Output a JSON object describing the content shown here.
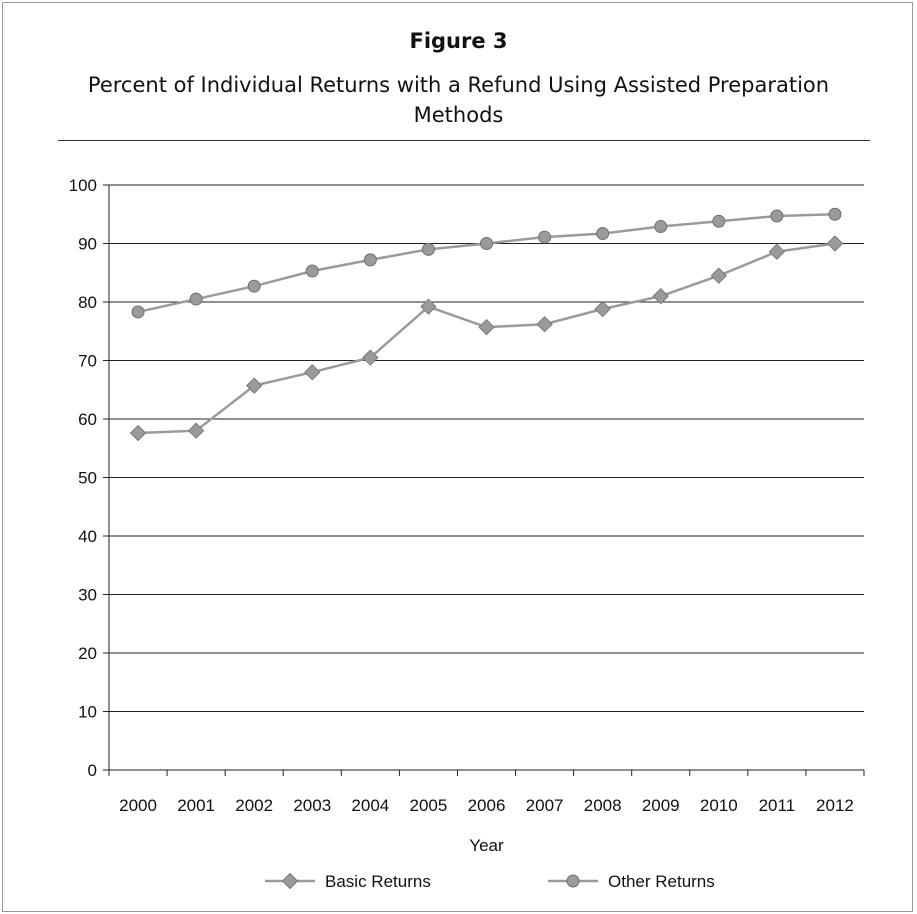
{
  "figure_label": "Figure 3",
  "title": "Percent of Individual Returns with a Refund Using Assisted Preparation Methods",
  "chart_data": {
    "type": "line",
    "title": "Percent of Individual Returns with a Refund Using Assisted Preparation Methods",
    "xlabel": "Year",
    "ylabel": "",
    "categories": [
      "2000",
      "2001",
      "2002",
      "2003",
      "2004",
      "2005",
      "2006",
      "2007",
      "2008",
      "2009",
      "2010",
      "2011",
      "2012"
    ],
    "ylim": [
      0,
      100
    ],
    "yticks": [
      0,
      10,
      20,
      30,
      40,
      50,
      60,
      70,
      80,
      90,
      100
    ],
    "grid": true,
    "legend_position": "bottom",
    "series": [
      {
        "name": "Basic Returns",
        "marker": "diamond",
        "color": "#9a9a9a",
        "values": [
          57.6,
          58.0,
          65.7,
          68.0,
          70.5,
          79.2,
          75.7,
          76.2,
          78.8,
          81.0,
          84.5,
          88.6,
          90.0
        ]
      },
      {
        "name": "Other Returns",
        "marker": "circle",
        "color": "#9a9a9a",
        "values": [
          78.3,
          80.5,
          82.7,
          85.3,
          87.2,
          89.0,
          90.0,
          91.1,
          91.7,
          92.9,
          93.8,
          94.7,
          95.0
        ]
      }
    ]
  }
}
